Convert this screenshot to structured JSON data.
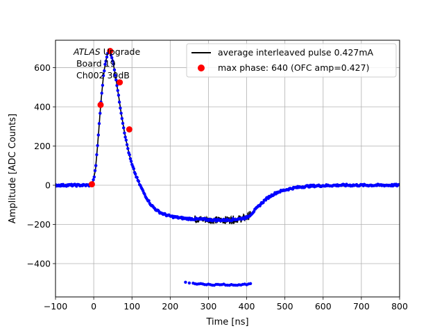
{
  "chart_data": {
    "type": "scatter",
    "xlabel": "Time [ns]",
    "ylabel": "Amplitude [ADC Counts]",
    "xlim": [
      -100,
      800
    ],
    "ylim": [
      -570,
      740
    ],
    "xticks": [
      -100,
      0,
      100,
      200,
      300,
      400,
      500,
      600,
      700,
      800
    ],
    "yticks": [
      -400,
      -200,
      0,
      200,
      400,
      600
    ],
    "grid": true,
    "legend_position": "upper right",
    "annotation": {
      "italic": "ATLAS",
      "line1_rest": " Upgrade",
      "line2": " Board 19",
      "line3": " Ch002 30dB"
    },
    "series": [
      {
        "name": "average interleaved pulse 0.427mA",
        "kind": "line",
        "color": "#000000",
        "x": [
          -100,
          -10,
          -5,
          0,
          5,
          10,
          15,
          20,
          25,
          30,
          35,
          40,
          45,
          50,
          55,
          60,
          65,
          70,
          75,
          80,
          85,
          90,
          95,
          100,
          110,
          120,
          130,
          140,
          150,
          160,
          170,
          180,
          190,
          200,
          220,
          240,
          260,
          280,
          300,
          320,
          340,
          360,
          380,
          400,
          410,
          420,
          430,
          440,
          450,
          460,
          470,
          480,
          500,
          520,
          540,
          560,
          580,
          600,
          620,
          650,
          700,
          750,
          800
        ],
        "y": [
          0,
          0,
          5,
          30,
          90,
          200,
          330,
          450,
          550,
          620,
          665,
          682,
          670,
          635,
          580,
          520,
          455,
          390,
          330,
          275,
          225,
          180,
          140,
          105,
          50,
          5,
          -35,
          -70,
          -100,
          -120,
          -135,
          -145,
          -152,
          -158,
          -165,
          -170,
          -172,
          -174,
          -176,
          -178,
          -178,
          -176,
          -172,
          -165,
          -150,
          -130,
          -110,
          -90,
          -72,
          -58,
          -46,
          -36,
          -24,
          -15,
          -9,
          -5,
          -3,
          -2,
          -1,
          0,
          0,
          0,
          0
        ]
      },
      {
        "name": "max phase: 640 (OFC amp=0.427)",
        "kind": "markers",
        "color": "#ff0000",
        "x": [
          -5,
          18,
          43,
          68,
          93
        ],
        "y": [
          5,
          410,
          685,
          525,
          285
        ]
      }
    ],
    "samples_color": "#0000ff",
    "outlier_samples": {
      "x": [
        240,
        260,
        270,
        280,
        290,
        300,
        310,
        320,
        330,
        340,
        350,
        360,
        370,
        380,
        390,
        400,
        410
      ],
      "y": [
        -495,
        -500,
        -505,
        -502,
        -507,
        -505,
        -510,
        -506,
        -508,
        -505,
        -510,
        -507,
        -510,
        -508,
        -506,
        -508,
        -502
      ]
    }
  }
}
